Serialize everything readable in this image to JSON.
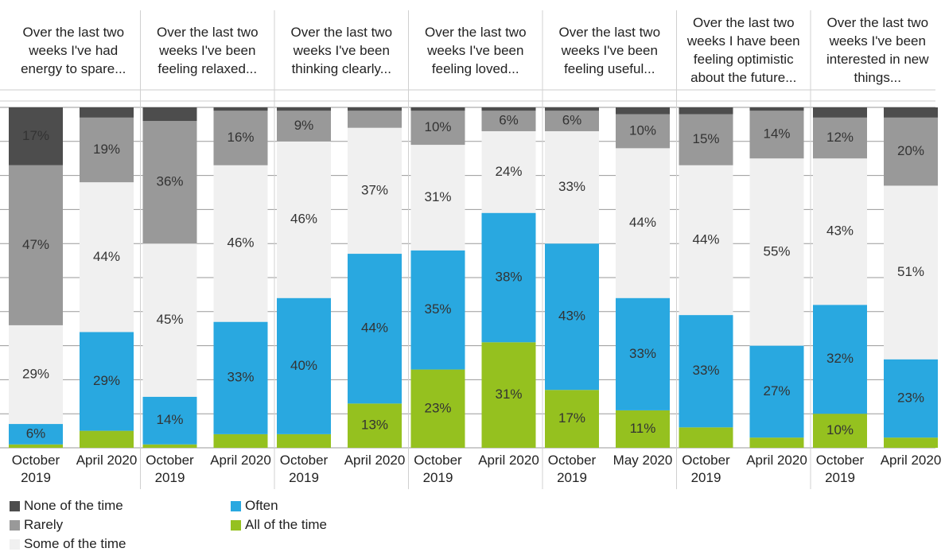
{
  "chart_data": {
    "type": "bar",
    "stacked": true,
    "groups": [
      "Over the last two weeks I've had energy to spare...",
      "Over the last two weeks I've been feeling relaxed...",
      "Over the last two weeks I've been thinking clearly...",
      "Over the last two weeks I've been feeling loved...",
      "Over the last two weeks I've been feeling useful...",
      "Over the last two weeks I have been feeling optimistic about the future...",
      "Over the last two weeks I've been interested in new things..."
    ],
    "categories": [
      "October 2019",
      "April 2020",
      "October 2019",
      "April 2020",
      "October 2019",
      "April 2020",
      "October 2019",
      "April 2020",
      "October 2019",
      "May 2020",
      "October 2019",
      "April 2020",
      "October 2019",
      "April 2020"
    ],
    "ylim": [
      0,
      100
    ],
    "yticks": [
      0,
      10,
      20,
      30,
      40,
      50,
      60,
      70,
      80,
      90,
      100
    ],
    "grid": true,
    "series": [
      {
        "name": "None of the time",
        "color": "#4d4d4d",
        "values": [
          17,
          3,
          4,
          1,
          1,
          1,
          1,
          1,
          1,
          2,
          2,
          1,
          3,
          3
        ],
        "value_labels": [
          "17%",
          null,
          null,
          null,
          null,
          null,
          null,
          null,
          null,
          null,
          null,
          null,
          null,
          null
        ]
      },
      {
        "name": "Rarely",
        "color": "#999999",
        "values": [
          47,
          19,
          36,
          16,
          9,
          5,
          10,
          6,
          6,
          10,
          15,
          14,
          12,
          20
        ],
        "value_labels": [
          "47%",
          "19%",
          "36%",
          "16%",
          "9%",
          null,
          "10%",
          "6%",
          "6%",
          "10%",
          "15%",
          "14%",
          "12%",
          "20%"
        ]
      },
      {
        "name": "Some of the time",
        "color": "#f0f0f0",
        "values": [
          29,
          44,
          45,
          46,
          46,
          37,
          31,
          24,
          33,
          44,
          44,
          55,
          43,
          51
        ],
        "value_labels": [
          "29%",
          "44%",
          "45%",
          "46%",
          "46%",
          "37%",
          "31%",
          "24%",
          "33%",
          "44%",
          "44%",
          "55%",
          "43%",
          "51%"
        ]
      },
      {
        "name": "Often",
        "color": "#29a8e0",
        "values": [
          6,
          29,
          14,
          33,
          40,
          44,
          35,
          38,
          43,
          33,
          33,
          27,
          32,
          23
        ],
        "value_labels": [
          "6%",
          "29%",
          "14%",
          "33%",
          "40%",
          "44%",
          "35%",
          "38%",
          "43%",
          "33%",
          "33%",
          "27%",
          "32%",
          "23%"
        ]
      },
      {
        "name": "All of the time",
        "color": "#95c11f",
        "values": [
          1,
          5,
          1,
          4,
          4,
          13,
          23,
          31,
          17,
          11,
          6,
          3,
          10,
          3
        ],
        "value_labels": [
          null,
          null,
          null,
          null,
          null,
          "13%",
          "23%",
          "31%",
          "17%",
          "11%",
          null,
          null,
          "10%",
          null
        ]
      }
    ]
  }
}
